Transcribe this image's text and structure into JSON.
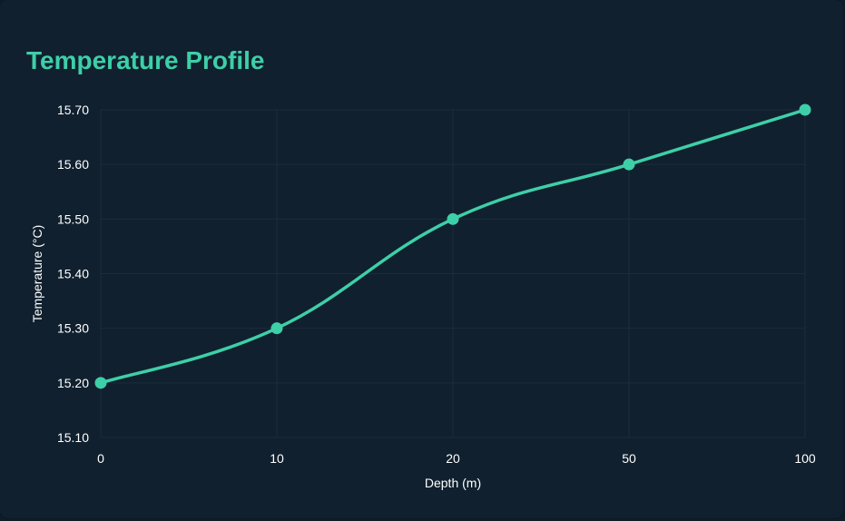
{
  "colors": {
    "background": "#10202f",
    "title": "#3ecfa8",
    "series": "#3ecfa8",
    "grid": "#1b2c3b",
    "text": "#ffffff"
  },
  "chart_data": {
    "type": "line",
    "title": "Temperature Profile",
    "xlabel": "Depth (m)",
    "ylabel": "Temperature (°C)",
    "categories": [
      "0",
      "10",
      "20",
      "50",
      "100"
    ],
    "series": [
      {
        "values": [
          15.2,
          15.3,
          15.5,
          15.6,
          15.7
        ]
      }
    ],
    "yticks": [
      "15.10",
      "15.20",
      "15.30",
      "15.40",
      "15.50",
      "15.60",
      "15.70"
    ],
    "ylim": [
      15.1,
      15.7
    ],
    "grid": true,
    "smooth": true,
    "legend": "none"
  }
}
